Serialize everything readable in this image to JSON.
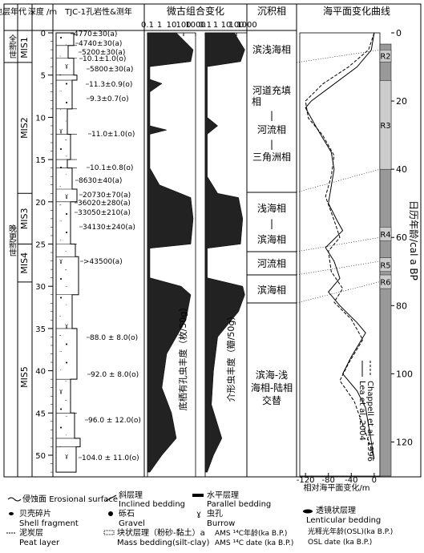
{
  "headers": {
    "era": "地层年代",
    "depth": "深度 /m",
    "lithology": "TJC-1孔岩性&测年",
    "micro": "微古组合变化",
    "facies": "沉积相",
    "sealevel": "海平面变化曲线"
  },
  "epochs": {
    "holocene": "全新世",
    "late_pleistocene": "晚更新世"
  },
  "mis": [
    "MIS1",
    "MIS2",
    "MIS3",
    "MIS4",
    "MIS5"
  ],
  "depth_ticks": [
    "0",
    "5",
    "10",
    "15",
    "20",
    "25",
    "30",
    "35",
    "40",
    "45",
    "50"
  ],
  "micro_scale": [
    "0.1",
    "1",
    "10",
    "100",
    "1000"
  ],
  "micro_scale2": [
    "0.1",
    "1",
    "10",
    "100",
    "1000"
  ],
  "micro_labels": {
    "benthic": "底栖有孔虫丰度（枚/50g）",
    "ostracod": "介形虫丰度（瓣/50g）"
  },
  "dates": [
    "4770±30(a)",
    "4740±30(a)",
    "5200±30(a)",
    "10.1±1.0(o)",
    "5800±30(a)",
    "11.3±0.9(o)",
    "9.3±0.7(o)",
    "11.0±1.0(o)",
    "10.1±0.8(o)",
    "8630±40(a)",
    "20730±70(a)",
    "36020±280(a)",
    "33050±210(a)",
    "34130±240(a)",
    ">43500(a)",
    "88.0 ± 8.0(o)",
    "92.0 ± 8.0(o)",
    "96.0 ± 12.0(o)",
    "104.0 ± 11.0(o)"
  ],
  "facies": {
    "f1": "滨浅海相",
    "f2a": "河道充填",
    "f2b": "相",
    "dash": "|",
    "f2c": "河流相",
    "f2d": "三角洲相",
    "f3a": "浅海相",
    "f3b": "滨海相",
    "f4": "河流相",
    "f5": "滨海相",
    "f6a": "滨海-浅",
    "f6b": "海相-陆相",
    "f6c": "交替"
  },
  "sea_level": {
    "x_ticks": [
      "-120",
      "-80",
      "-40",
      "0"
    ],
    "x_label": "相对海平面变化/m",
    "y_ticks": [
      "0",
      "20",
      "40",
      "60",
      "80",
      "100",
      "120"
    ],
    "y_label": "日历年龄/cal a BP",
    "legend": [
      "Lea et al.,2004",
      "Chappell et al.,1996"
    ],
    "regressions": [
      "R2",
      "R3",
      "R4",
      "R5",
      "R6"
    ],
    "chart_data": {
      "type": "line",
      "xlim": [
        -130,
        10
      ],
      "ylim": [
        0,
        130
      ],
      "series": [
        {
          "name": "Lea et al.,2004",
          "points": [
            [
              0,
              0
            ],
            [
              -5,
              5
            ],
            [
              -30,
              10
            ],
            [
              -70,
              15
            ],
            [
              -110,
              20
            ],
            [
              -120,
              22
            ],
            [
              -100,
              28
            ],
            [
              -75,
              35
            ],
            [
              -70,
              40
            ],
            [
              -75,
              45
            ],
            [
              -80,
              50
            ],
            [
              -65,
              55
            ],
            [
              -55,
              58
            ],
            [
              -85,
              63
            ],
            [
              -70,
              67
            ],
            [
              -60,
              72
            ],
            [
              -80,
              76
            ],
            [
              -60,
              80
            ],
            [
              -30,
              85
            ],
            [
              -15,
              88
            ],
            [
              -40,
              95
            ],
            [
              -55,
              100
            ],
            [
              -30,
              105
            ],
            [
              -15,
              110
            ],
            [
              -5,
              120
            ],
            [
              0,
              125
            ]
          ]
        },
        {
          "name": "Chappell et al.,1996",
          "points": [
            [
              0,
              0
            ],
            [
              -10,
              5
            ],
            [
              -45,
              10
            ],
            [
              -90,
              15
            ],
            [
              -120,
              20
            ],
            [
              -115,
              25
            ],
            [
              -90,
              30
            ],
            [
              -70,
              36
            ],
            [
              -75,
              42
            ],
            [
              -85,
              48
            ],
            [
              -70,
              55
            ],
            [
              -60,
              60
            ],
            [
              -80,
              64
            ],
            [
              -75,
              70
            ],
            [
              -55,
              75
            ],
            [
              -70,
              79
            ],
            [
              -40,
              84
            ],
            [
              -20,
              90
            ],
            [
              -45,
              97
            ],
            [
              -60,
              102
            ],
            [
              -35,
              108
            ],
            [
              -20,
              115
            ],
            [
              -5,
              122
            ],
            [
              0,
              125
            ]
          ]
        }
      ]
    }
  },
  "legend": {
    "erosion": [
      "侵蚀面",
      "Erosional surface"
    ],
    "inclined": [
      "斜层理",
      "Inclined bedding"
    ],
    "parallel": [
      "水平层理",
      "Parallel bedding"
    ],
    "shell": [
      "贝壳碎片",
      "Shell fragment"
    ],
    "gravel": [
      "砾石",
      "Gravel"
    ],
    "burrow": [
      "虫孔",
      "Burrow"
    ],
    "lenticular": [
      "透镜状层理",
      "Lenticular bedding"
    ],
    "peat": [
      "泥炭层",
      "Peat layer"
    ],
    "mass": [
      "块状层理（粉砂-黏土）a",
      "Mass bedding(silt-clay)"
    ],
    "ams": [
      "AMS ¹⁴C年龄(ka B.P.)",
      "AMS ¹⁴C date (ka B.P.)"
    ],
    "osl": [
      "光释光年龄(OSL)(ka B.P.)",
      "OSL date (ka B.P.)"
    ]
  }
}
